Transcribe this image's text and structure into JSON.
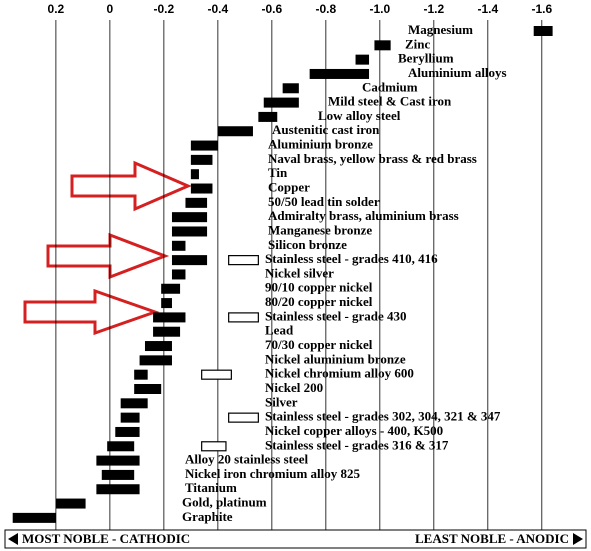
{
  "chart_data": {
    "type": "range_bar",
    "categories": [
      "Magnesium",
      "Zinc",
      "Beryllium",
      "Aluminium alloys",
      "Cadmium",
      "Mild steel & Cast iron",
      "Low alloy steel",
      "Austenitic cast iron",
      "Aluminium bronze",
      "Naval brass, yellow brass & red brass",
      "Tin",
      "Copper",
      "50/50 lead tin solder",
      "Admiralty brass, aluminium brass",
      "Manganese bronze",
      "Silicon bronze",
      "Stainless steel  - grades 410, 416",
      "Nickel silver",
      "90/10 copper nickel",
      "80/20 copper nickel",
      "Stainless steel  - grade 430",
      "Lead",
      "70/30 copper nickel",
      "Nickel aluminium bronze",
      "Nickel chromium alloy 600",
      "Nickel 200",
      "Silver",
      "Stainless steel - grades 302, 304, 321 & 347",
      "Nickel copper  alloys - 400, K500",
      "Stainless steel - grades 316 & 317",
      "Alloy 20 stainless steel",
      "Nickel iron chromium alloy 825",
      "Titanium",
      "Gold, platinum",
      "Graphite"
    ],
    "values": [
      [
        -1.57,
        -1.64
      ],
      [
        -0.98,
        -1.04
      ],
      [
        -0.91,
        -0.96
      ],
      [
        -0.74,
        -0.96
      ],
      [
        -0.64,
        -0.7
      ],
      [
        -0.57,
        -0.7
      ],
      [
        -0.55,
        -0.62
      ],
      [
        -0.4,
        -0.53
      ],
      [
        -0.3,
        -0.4
      ],
      [
        -0.3,
        -0.38
      ],
      [
        -0.3,
        -0.33
      ],
      [
        -0.3,
        -0.38
      ],
      [
        -0.28,
        -0.36
      ],
      [
        -0.23,
        -0.36
      ],
      [
        -0.23,
        -0.36
      ],
      [
        -0.23,
        -0.28
      ],
      [
        -0.23,
        -0.36
      ],
      [
        -0.23,
        -0.28
      ],
      [
        -0.19,
        -0.26
      ],
      [
        -0.19,
        -0.23
      ],
      [
        -0.16,
        -0.28
      ],
      [
        -0.16,
        -0.26
      ],
      [
        -0.13,
        -0.23
      ],
      [
        -0.11,
        -0.23
      ],
      [
        -0.09,
        -0.14
      ],
      [
        -0.09,
        -0.19
      ],
      [
        -0.04,
        -0.14
      ],
      [
        -0.04,
        -0.11
      ],
      [
        -0.02,
        -0.11
      ],
      [
        0.01,
        -0.09
      ],
      [
        0.05,
        -0.11
      ],
      [
        0.03,
        -0.09
      ],
      [
        0.05,
        -0.11
      ],
      [
        0.2,
        0.09
      ],
      [
        0.36,
        0.2
      ]
    ],
    "passive_values": [
      null,
      null,
      null,
      null,
      null,
      null,
      null,
      null,
      null,
      null,
      null,
      null,
      null,
      null,
      null,
      null,
      [
        -0.44,
        -0.55
      ],
      null,
      null,
      null,
      [
        -0.44,
        -0.55
      ],
      null,
      null,
      null,
      [
        -0.34,
        -0.45
      ],
      null,
      null,
      [
        -0.44,
        -0.55
      ],
      null,
      [
        -0.34,
        -0.43
      ],
      null,
      null,
      null,
      null,
      null
    ],
    "color": "#000000",
    "passive_color": "#ffffff",
    "xlim": [
      0.37,
      -1.76
    ],
    "xticks": [
      0.2,
      0,
      -0.2,
      -0.4,
      -0.6,
      -0.8,
      {
        "value": -1,
        "label": "-1.0"
      },
      -1.2,
      -1.4,
      -1.6
    ],
    "grid": true,
    "annotations": [
      "MOST NOBLE - CATHODIC",
      "LEAST NOBLE - ANODIC"
    ]
  }
}
